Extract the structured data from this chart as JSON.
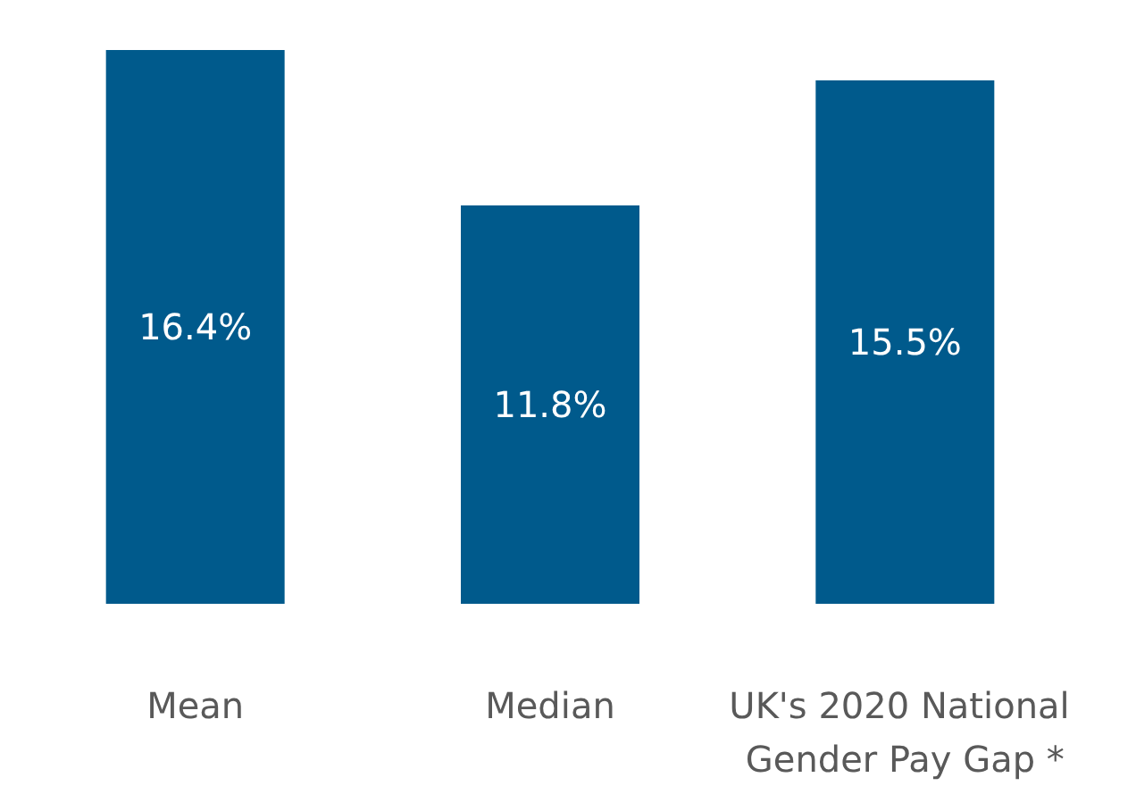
{
  "chart_data": {
    "type": "bar",
    "categories": [
      "Mean",
      "Median",
      "UK's 2020 National Gender Pay Gap *"
    ],
    "values": [
      16.4,
      11.8,
      15.5
    ],
    "value_labels": [
      "16.4%",
      "11.8%",
      "15.5%"
    ],
    "color": "#005a8c"
  }
}
